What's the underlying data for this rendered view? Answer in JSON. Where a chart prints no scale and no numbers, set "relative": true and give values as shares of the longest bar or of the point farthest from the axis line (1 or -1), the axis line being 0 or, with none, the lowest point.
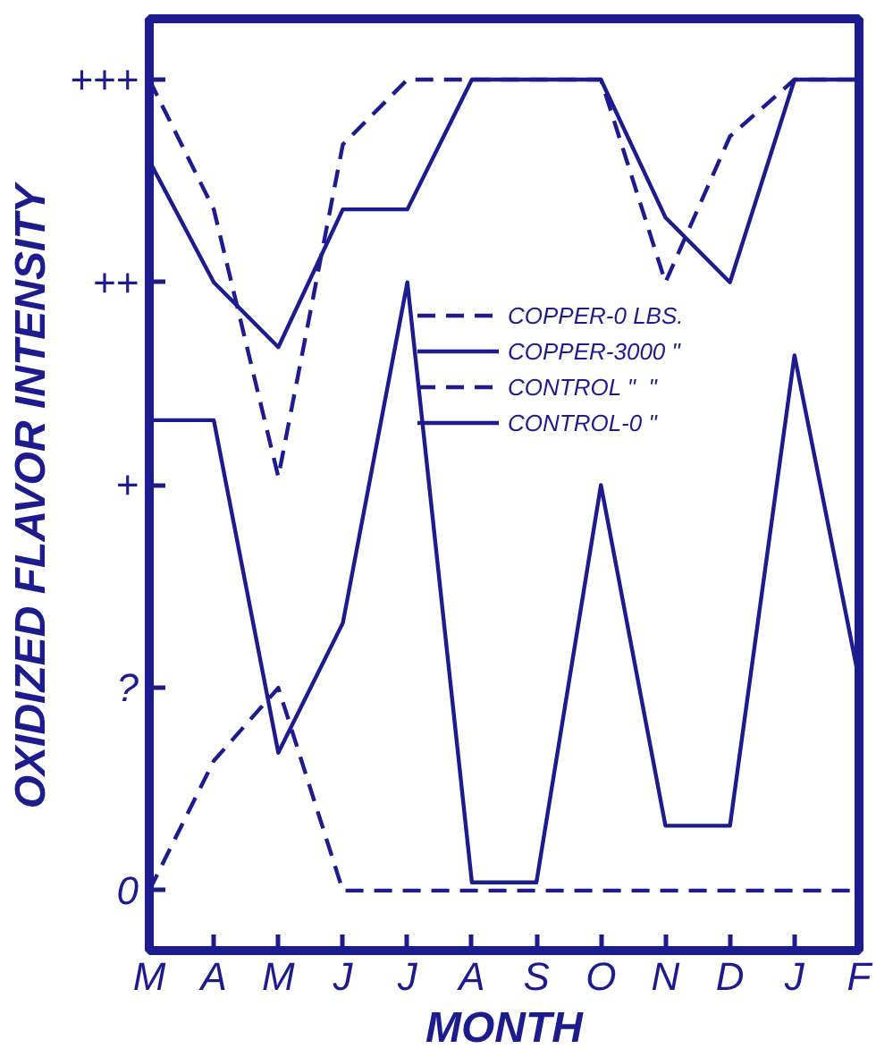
{
  "chart_data": {
    "type": "line",
    "xlabel": "MONTH",
    "ylabel": "OXIDIZED  FLAVOR  INTENSITY",
    "relative": true,
    "categories": [
      "M",
      "A",
      "M",
      "J",
      "J",
      "A",
      "S",
      "O",
      "N",
      "D",
      "J",
      "F"
    ],
    "annotations": [
      "0",
      "?",
      "+",
      "++",
      "+++"
    ],
    "grid": false,
    "legend": "center",
    "marker": "none",
    "series": [
      {
        "name": "COPPER-0 LBS.",
        "color": "#1c1c8e",
        "line_style": "dashed",
        "values": [
          1,
          0.84,
          0.51,
          0.92,
          1,
          1,
          1,
          1,
          0.75,
          0.93,
          1,
          1
        ]
      },
      {
        "name": "COPPER-3000 \"",
        "color": "#1c1c8e",
        "line_style": "solid",
        "values": [
          0.9,
          0.75,
          0.67,
          0.84,
          0.84,
          1,
          1,
          1,
          0.83,
          0.75,
          1,
          1
        ]
      },
      {
        "name": "CONTROL \"  \"",
        "color": "#1c1c8e",
        "line_style": "dashed",
        "values": [
          0,
          0.16,
          0.25,
          0,
          0,
          0,
          0,
          0,
          0,
          0,
          0,
          0
        ]
      },
      {
        "name": "CONTROL-0 \"",
        "color": "#1c1c8e",
        "line_style": "solid",
        "values": [
          0.58,
          0.58,
          0.17,
          0.33,
          0.75,
          0.01,
          0.01,
          0.5,
          0.08,
          0.08,
          0.66,
          0.26
        ]
      }
    ]
  }
}
